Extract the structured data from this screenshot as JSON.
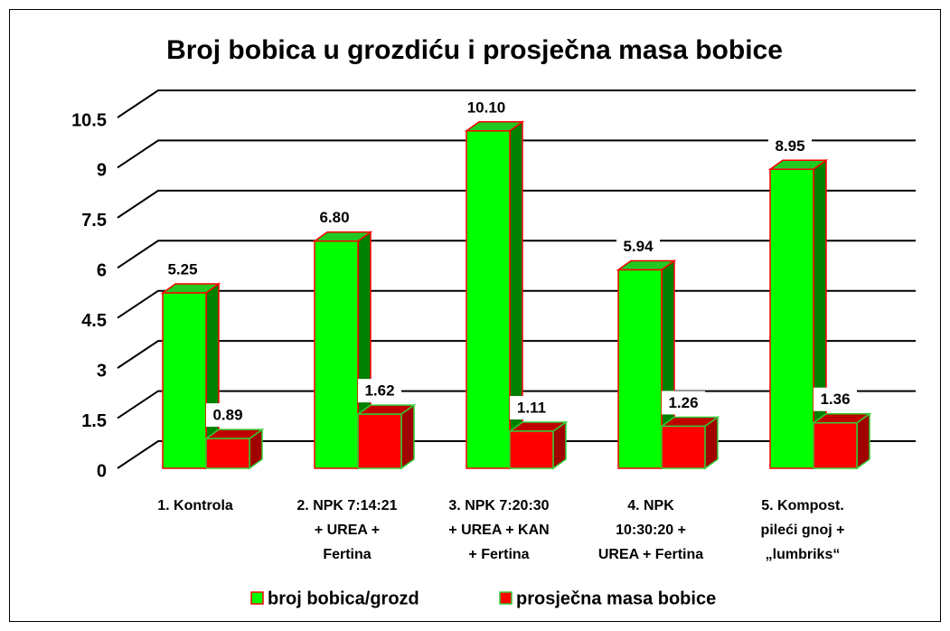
{
  "chart_data": {
    "type": "bar3d",
    "title": "Broj bobica u grozdiću i prosječna masa bobice",
    "categories": [
      [
        "1. Kontrola"
      ],
      [
        "2. NPK 7:14:21",
        "+ UREA +",
        "Fertina"
      ],
      [
        "3. NPK 7:20:30",
        "+ UREA + KAN",
        "+ Fertina"
      ],
      [
        "4. NPK",
        "10:30:20 +",
        "UREA + Fertina"
      ],
      [
        "5. Kompost.",
        "pileći gnoj +",
        "„lumbriks“"
      ]
    ],
    "series": [
      {
        "name": "broj bobica/grozd",
        "color": "#00ff00",
        "side": "#008000",
        "top": "#22c922",
        "edge": "#ff0000",
        "values": [
          5.25,
          6.8,
          10.1,
          5.94,
          8.95
        ],
        "value_labels": [
          "5.25",
          "6.80",
          "10.10",
          "5.94",
          "8.95"
        ]
      },
      {
        "name": "prosječna masa bobice",
        "color": "#ff0000",
        "side": "#a00000",
        "top": "#c00000",
        "edge": "#33cc33",
        "values": [
          0.89,
          1.62,
          1.11,
          1.26,
          1.36
        ],
        "value_labels": [
          "0.89",
          "1.62",
          "1.11",
          "1.26",
          "1.36"
        ]
      }
    ],
    "ylim": [
      0,
      10.5
    ],
    "yticks": [
      0,
      1.5,
      3,
      4.5,
      6,
      7.5,
      9,
      10.5
    ],
    "grid": true,
    "legend": "bottom"
  }
}
